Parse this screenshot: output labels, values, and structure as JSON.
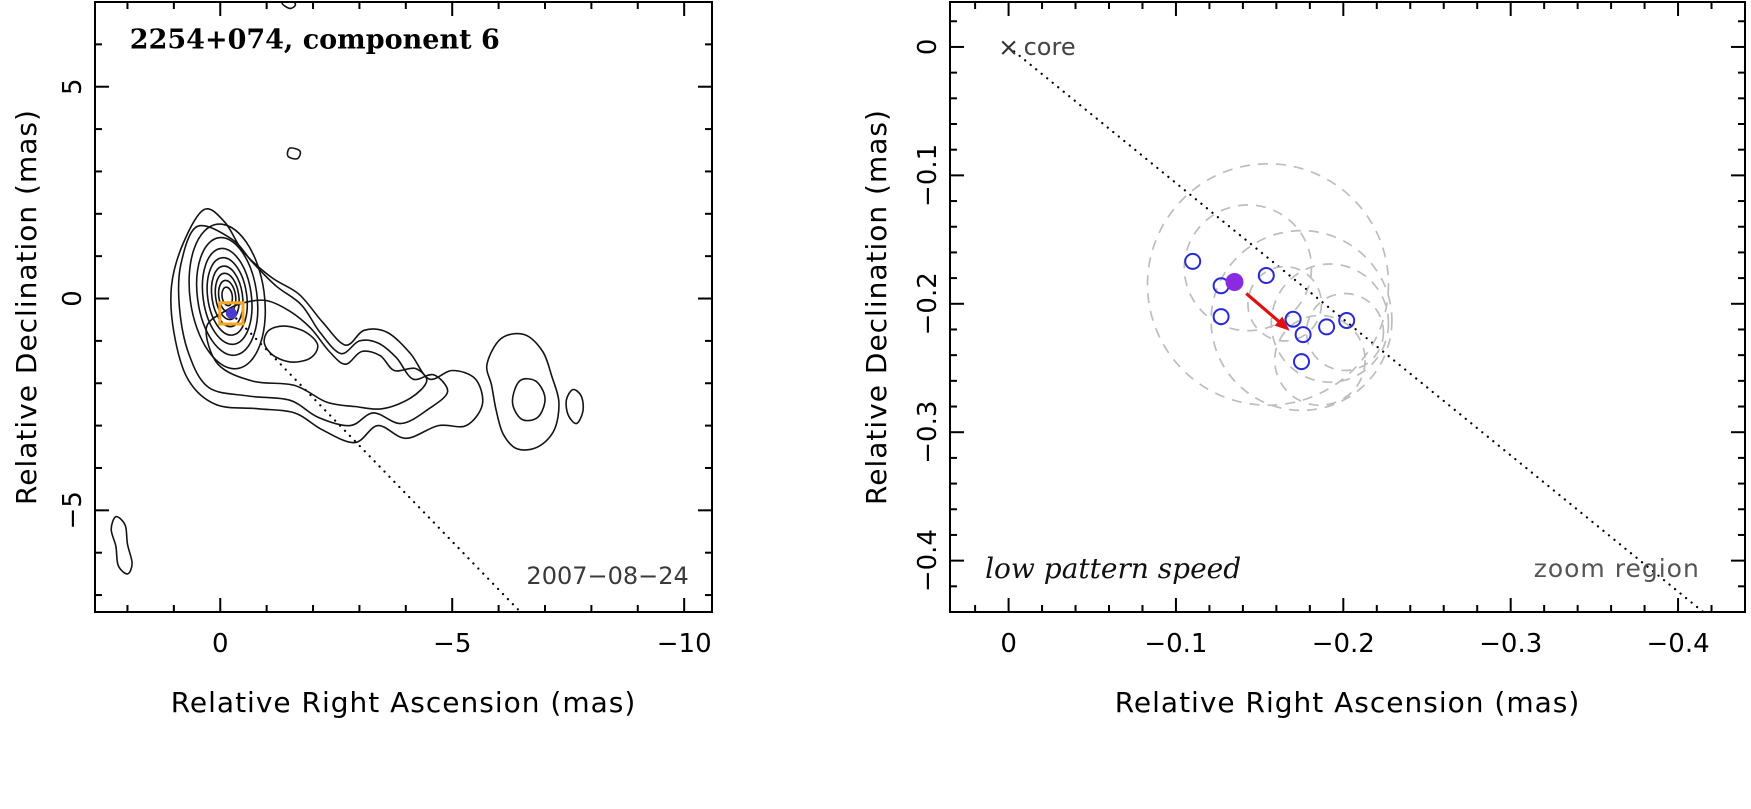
{
  "page": {
    "background": "#ffffff",
    "frame_color": "#000000",
    "contour_color": "#141414"
  },
  "chart_data": [
    {
      "type": "contour",
      "name": "vlbi-contour-map",
      "title": "2254+074, component 6",
      "title_pos": [
        1.95,
        6.1
      ],
      "date_label": "2007−08−24",
      "date_pos": [
        -10.1,
        -6.55
      ],
      "xlabel": "Relative Right Ascension (mas)",
      "ylabel": "Relative Declination (mas)",
      "xlim": [
        2.7,
        -10.6
      ],
      "ylim": [
        7.0,
        -7.4
      ],
      "xticks": {
        "values": [
          0,
          -5,
          -10
        ],
        "labels": [
          "0",
          "−5",
          "−10"
        ],
        "minor_step": 1
      },
      "yticks": {
        "values": [
          5,
          0,
          -5
        ],
        "labels": [
          "5",
          "0",
          "−5"
        ],
        "minor_step": 1
      },
      "ridge_line": {
        "x1": -0.24,
        "y1": -0.35,
        "x2": -6.47,
        "y2": -7.4
      },
      "component_marker": {
        "x": -0.24,
        "y": -0.35,
        "square_size_mas": 0.5,
        "square_color": "#f5a623",
        "dot_color": "#4a3ad0",
        "dot_radius_px": 5.5
      },
      "core": {
        "cx": -0.15,
        "cy": 0.05,
        "rot_deg": -8,
        "levels": [
          [
            0.11,
            0.22
          ],
          [
            0.18,
            0.38
          ],
          [
            0.25,
            0.55
          ],
          [
            0.33,
            0.72
          ],
          [
            0.42,
            0.92
          ],
          [
            0.52,
            1.14
          ],
          [
            0.64,
            1.4
          ],
          [
            0.8,
            1.72
          ]
        ]
      },
      "contour_polygons": [
        {
          "name": "outer-envelope",
          "points": [
            [
              0.35,
              2.1
            ],
            [
              0.8,
              1.3
            ],
            [
              1.05,
              0.3
            ],
            [
              1.0,
              -0.8
            ],
            [
              0.7,
              -1.9
            ],
            [
              0.1,
              -2.5
            ],
            [
              -0.8,
              -2.6
            ],
            [
              -1.6,
              -2.7
            ],
            [
              -2.2,
              -3.1
            ],
            [
              -2.9,
              -3.4
            ],
            [
              -3.4,
              -3.0
            ],
            [
              -4.0,
              -3.3
            ],
            [
              -4.7,
              -3.0
            ],
            [
              -5.3,
              -3.0
            ],
            [
              -5.65,
              -2.5
            ],
            [
              -5.5,
              -1.9
            ],
            [
              -5.0,
              -1.7
            ],
            [
              -4.5,
              -1.9
            ],
            [
              -4.1,
              -1.3
            ],
            [
              -3.6,
              -0.8
            ],
            [
              -3.1,
              -0.75
            ],
            [
              -2.7,
              -1.1
            ],
            [
              -2.2,
              -0.55
            ],
            [
              -1.7,
              0.1
            ],
            [
              -1.1,
              0.5
            ],
            [
              -0.5,
              1.1
            ],
            [
              -0.1,
              1.8
            ]
          ]
        },
        {
          "name": "second-envelope",
          "points": [
            [
              0.5,
              1.7
            ],
            [
              0.85,
              0.8
            ],
            [
              0.88,
              -0.2
            ],
            [
              0.68,
              -1.3
            ],
            [
              0.25,
              -2.1
            ],
            [
              -0.6,
              -2.3
            ],
            [
              -1.5,
              -2.4
            ],
            [
              -2.1,
              -2.8
            ],
            [
              -2.8,
              -3.0
            ],
            [
              -3.3,
              -2.7
            ],
            [
              -3.9,
              -2.95
            ],
            [
              -4.5,
              -2.6
            ],
            [
              -4.9,
              -2.2
            ],
            [
              -4.6,
              -1.8
            ],
            [
              -4.15,
              -1.9
            ],
            [
              -3.8,
              -1.4
            ],
            [
              -3.4,
              -1.05
            ],
            [
              -3.0,
              -1.0
            ],
            [
              -2.6,
              -1.3
            ],
            [
              -2.15,
              -0.8
            ],
            [
              -1.75,
              -0.15
            ],
            [
              -1.2,
              0.3
            ],
            [
              -0.7,
              0.85
            ],
            [
              -0.25,
              1.4
            ]
          ]
        },
        {
          "name": "jet-inner",
          "points": [
            [
              0.3,
              -0.7
            ],
            [
              0.05,
              -1.55
            ],
            [
              -0.7,
              -1.95
            ],
            [
              -1.6,
              -2.05
            ],
            [
              -2.3,
              -2.45
            ],
            [
              -2.9,
              -2.55
            ],
            [
              -3.5,
              -2.6
            ],
            [
              -4.1,
              -2.35
            ],
            [
              -4.45,
              -1.95
            ],
            [
              -4.2,
              -1.65
            ],
            [
              -3.75,
              -1.7
            ],
            [
              -3.45,
              -1.35
            ],
            [
              -3.05,
              -1.25
            ],
            [
              -2.7,
              -1.55
            ],
            [
              -2.35,
              -1.25
            ],
            [
              -1.95,
              -0.7
            ],
            [
              -1.5,
              -0.3
            ],
            [
              -1.0,
              -0.05
            ],
            [
              -0.5,
              -0.1
            ],
            [
              -0.1,
              -0.3
            ]
          ]
        },
        {
          "name": "knot",
          "points": [
            [
              -1.05,
              -0.75
            ],
            [
              -1.4,
              -0.65
            ],
            [
              -1.85,
              -0.8
            ],
            [
              -2.1,
              -1.1
            ],
            [
              -1.95,
              -1.4
            ],
            [
              -1.55,
              -1.5
            ],
            [
              -1.15,
              -1.35
            ],
            [
              -0.95,
              -1.05
            ]
          ]
        },
        {
          "name": "west-lobe-outer",
          "points": [
            [
              -5.75,
              -1.55
            ],
            [
              -6.05,
              -0.95
            ],
            [
              -6.55,
              -0.85
            ],
            [
              -6.95,
              -1.25
            ],
            [
              -7.15,
              -1.85
            ],
            [
              -7.3,
              -2.45
            ],
            [
              -7.2,
              -3.1
            ],
            [
              -6.85,
              -3.5
            ],
            [
              -6.4,
              -3.55
            ],
            [
              -6.1,
              -3.2
            ],
            [
              -5.95,
              -2.65
            ],
            [
              -5.85,
              -2.05
            ]
          ]
        },
        {
          "name": "west-lobe-inner",
          "points": [
            [
              -6.45,
              -1.95
            ],
            [
              -6.8,
              -1.95
            ],
            [
              -7.0,
              -2.35
            ],
            [
              -6.85,
              -2.8
            ],
            [
              -6.5,
              -2.85
            ],
            [
              -6.3,
              -2.45
            ]
          ]
        },
        {
          "name": "east-isolated",
          "points": [
            [
              -7.6,
              -2.15
            ],
            [
              -7.78,
              -2.3
            ],
            [
              -7.82,
              -2.65
            ],
            [
              -7.68,
              -2.95
            ],
            [
              -7.5,
              -2.75
            ],
            [
              -7.46,
              -2.4
            ]
          ]
        },
        {
          "name": "south-west-blob",
          "points": [
            [
              2.25,
              -5.15
            ],
            [
              2.05,
              -5.35
            ],
            [
              2.0,
              -5.8
            ],
            [
              1.9,
              -6.25
            ],
            [
              2.0,
              -6.5
            ],
            [
              2.2,
              -6.3
            ],
            [
              2.25,
              -5.85
            ],
            [
              2.35,
              -5.45
            ]
          ]
        },
        {
          "name": "north-squiggle",
          "points": [
            [
              -1.5,
              3.55
            ],
            [
              -1.72,
              3.48
            ],
            [
              -1.66,
              3.3
            ],
            [
              -1.46,
              3.36
            ]
          ]
        },
        {
          "name": "top-edge-fragment",
          "points": [
            [
              -1.45,
              7.15
            ],
            [
              -1.62,
              6.95
            ],
            [
              -1.5,
              6.85
            ],
            [
              -1.33,
              6.98
            ]
          ]
        }
      ]
    },
    {
      "type": "scatter",
      "name": "zoom-region-scatter",
      "core_label": "core",
      "speed_label": "low pattern speed",
      "speed_label_pos": [
        0.014,
        -0.406
      ],
      "region_label": "zoom region",
      "region_label_pos": [
        -0.413,
        -0.406
      ],
      "xlabel": "Relative Right Ascension (mas)",
      "ylabel": "Relative Declination (mas)",
      "xlim": [
        0.035,
        -0.44
      ],
      "ylim": [
        0.035,
        -0.44
      ],
      "xticks": {
        "values": [
          0,
          -0.1,
          -0.2,
          -0.3,
          -0.4
        ],
        "labels": [
          "0",
          "−0.1",
          "−0.2",
          "−0.3",
          "−0.4"
        ],
        "minor_step": 0.02
      },
      "yticks": {
        "values": [
          0,
          -0.1,
          -0.2,
          -0.3,
          -0.4
        ],
        "labels": [
          "0",
          "−0.1",
          "−0.2",
          "−0.3",
          "−0.4"
        ],
        "minor_step": 0.02
      },
      "ridge_line": {
        "x1": 0.0,
        "y1": 0.0,
        "x2": -0.415,
        "y2": -0.44
      },
      "core_marker": {
        "x": 0.0,
        "y": 0.0
      },
      "beam_circles": [
        {
          "cx": -0.155,
          "cy": -0.185,
          "r_ra": 0.072,
          "r_dec": 0.094
        },
        {
          "cx": -0.175,
          "cy": -0.213,
          "r_ra": 0.054,
          "r_dec": 0.07
        },
        {
          "cx": -0.143,
          "cy": -0.172,
          "r_ra": 0.038,
          "r_dec": 0.049
        },
        {
          "cx": -0.192,
          "cy": -0.215,
          "r_ra": 0.035,
          "r_dec": 0.046
        },
        {
          "cx": -0.165,
          "cy": -0.2,
          "r_ra": 0.022,
          "r_dec": 0.029
        },
        {
          "cx": -0.201,
          "cy": -0.222,
          "r_ra": 0.023,
          "r_dec": 0.03
        },
        {
          "cx": -0.186,
          "cy": -0.244,
          "r_ra": 0.027,
          "r_dec": 0.035
        }
      ],
      "epoch_points": [
        [
          -0.11,
          -0.167
        ],
        [
          -0.127,
          -0.186
        ],
        [
          -0.154,
          -0.178
        ],
        [
          -0.127,
          -0.21
        ],
        [
          -0.17,
          -0.212
        ],
        [
          -0.176,
          -0.224
        ],
        [
          -0.19,
          -0.218
        ],
        [
          -0.202,
          -0.213
        ],
        [
          -0.175,
          -0.245
        ]
      ],
      "point_radius_px": 7.5,
      "mean_point": {
        "x": -0.135,
        "y": -0.183
      },
      "mean_point_radius_px": 9,
      "velocity_arrow": {
        "x1": -0.142,
        "y1": -0.192,
        "x2": -0.168,
        "y2": -0.221
      },
      "colors": {
        "points": "#2929d6",
        "mean": "#8a2be2",
        "arrow": "#e01010",
        "beam": "#bdbdbd"
      }
    }
  ]
}
